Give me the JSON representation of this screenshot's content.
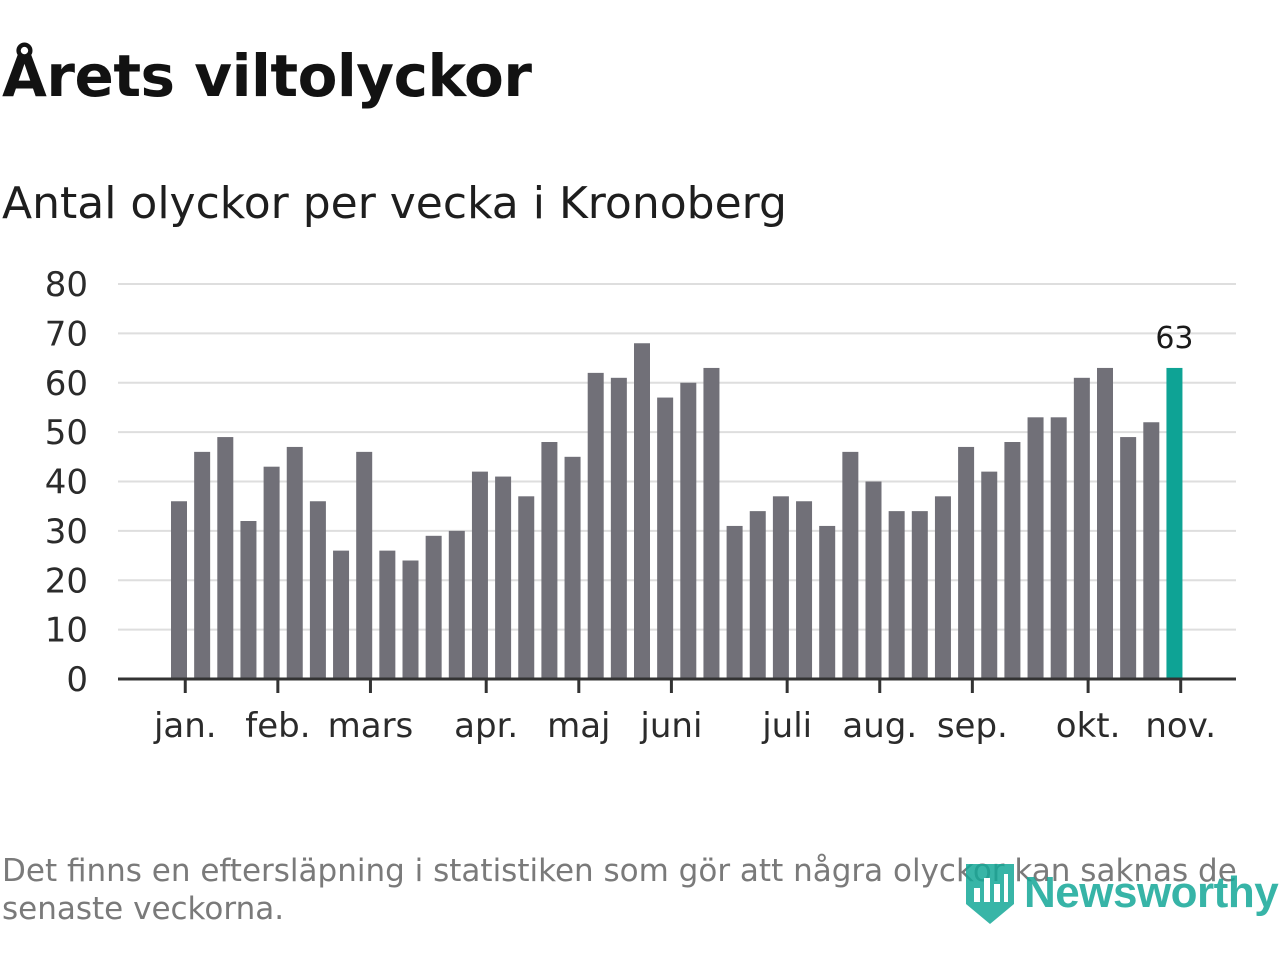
{
  "header": {
    "title": "Årets viltolyckor",
    "subtitle": "Antal olyckor per vecka i Kronoberg"
  },
  "chart_data": {
    "type": "bar",
    "title": "Årets viltolyckor",
    "subtitle": "Antal olyckor per vecka i Kronoberg",
    "xlabel": "",
    "ylabel": "",
    "ylim": [
      0,
      80
    ],
    "yticks": [
      0,
      10,
      20,
      30,
      40,
      50,
      60,
      70,
      80
    ],
    "grid": true,
    "values": [
      36,
      46,
      49,
      32,
      43,
      47,
      36,
      26,
      46,
      26,
      24,
      29,
      30,
      42,
      41,
      37,
      48,
      45,
      62,
      61,
      68,
      57,
      60,
      63,
      31,
      34,
      37,
      36,
      31,
      46,
      40,
      34,
      34,
      37,
      47,
      42,
      48,
      53,
      53,
      61,
      63,
      49,
      52,
      63
    ],
    "month_labels": [
      {
        "label": "jan.",
        "week_index": 0.4
      },
      {
        "label": "feb.",
        "week_index": 4.4
      },
      {
        "label": "mars",
        "week_index": 8.4
      },
      {
        "label": "apr.",
        "week_index": 13.4
      },
      {
        "label": "maj",
        "week_index": 17.4
      },
      {
        "label": "juni",
        "week_index": 21.4
      },
      {
        "label": "juli",
        "week_index": 26.4
      },
      {
        "label": "aug.",
        "week_index": 30.4
      },
      {
        "label": "sep.",
        "week_index": 34.4
      },
      {
        "label": "okt.",
        "week_index": 39.4
      },
      {
        "label": "nov.",
        "week_index": 43.4
      }
    ],
    "highlight_index": 43,
    "highlight_label": "63",
    "colors": {
      "bar": "#717078",
      "highlight": "#0ea395",
      "grid": "#dedede",
      "axis": "#333333",
      "tick_text": "#2b2b2b"
    }
  },
  "footer": {
    "note": "Det finns en eftersläpning i statistiken som gör att några olyckor kan saknas de senaste veckorna.",
    "brand": "Newsworthy",
    "brand_icon": "bar-chart-shield-icon",
    "brand_color": "#15a898"
  }
}
